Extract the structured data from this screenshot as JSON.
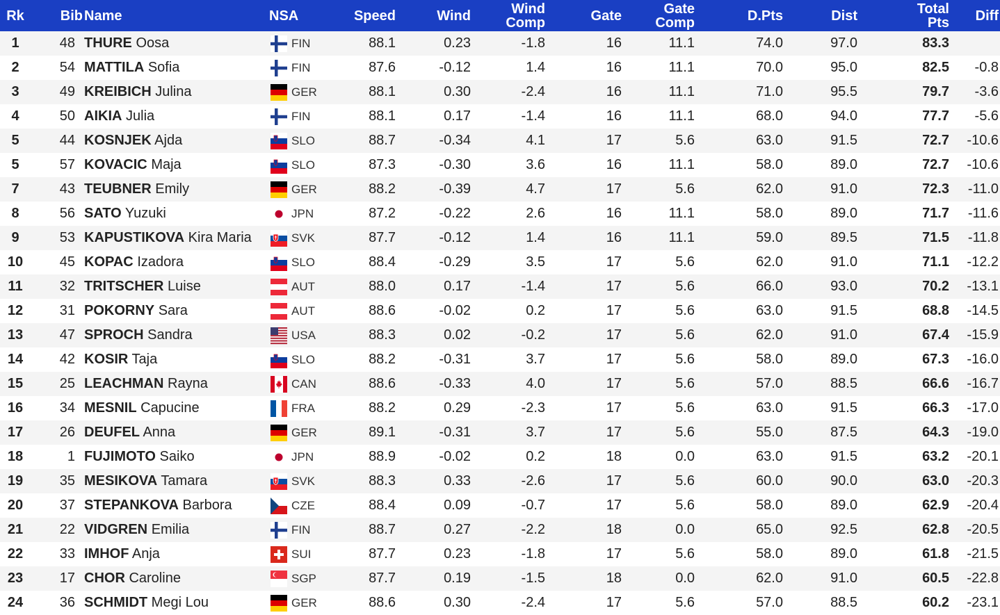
{
  "headers": {
    "rk": "Rk",
    "bib": "Bib",
    "name": "Name",
    "nsa": "NSA",
    "speed": "Speed",
    "wind": "Wind",
    "wind_comp": "Wind\nComp",
    "gate": "Gate",
    "gate_comp": "Gate\nComp",
    "dpts": "D.Pts",
    "dist": "Dist",
    "total_pts": "Total\nPts",
    "diff": "Diff"
  },
  "rows": [
    {
      "rk": "1",
      "bib": "48",
      "surname": "THURE",
      "given": "Oosa",
      "flag_icon": "flag-finland-icon",
      "nsa": "FIN",
      "speed": "88.1",
      "wind": "0.23",
      "wind_comp": "-1.8",
      "gate": "16",
      "gate_comp": "11.1",
      "dpts": "74.0",
      "dist": "97.0",
      "total": "83.3",
      "diff": ""
    },
    {
      "rk": "2",
      "bib": "54",
      "surname": "MATTILA",
      "given": "Sofia",
      "flag_icon": "flag-finland-icon",
      "nsa": "FIN",
      "speed": "87.6",
      "wind": "-0.12",
      "wind_comp": "1.4",
      "gate": "16",
      "gate_comp": "11.1",
      "dpts": "70.0",
      "dist": "95.0",
      "total": "82.5",
      "diff": "-0.8"
    },
    {
      "rk": "3",
      "bib": "49",
      "surname": "KREIBICH",
      "given": "Julina",
      "flag_icon": "flag-germany-icon",
      "nsa": "GER",
      "speed": "88.1",
      "wind": "0.30",
      "wind_comp": "-2.4",
      "gate": "16",
      "gate_comp": "11.1",
      "dpts": "71.0",
      "dist": "95.5",
      "total": "79.7",
      "diff": "-3.6"
    },
    {
      "rk": "4",
      "bib": "50",
      "surname": "AIKIA",
      "given": "Julia",
      "flag_icon": "flag-finland-icon",
      "nsa": "FIN",
      "speed": "88.1",
      "wind": "0.17",
      "wind_comp": "-1.4",
      "gate": "16",
      "gate_comp": "11.1",
      "dpts": "68.0",
      "dist": "94.0",
      "total": "77.7",
      "diff": "-5.6"
    },
    {
      "rk": "5",
      "bib": "44",
      "surname": "KOSNJEK",
      "given": "Ajda",
      "flag_icon": "flag-slovenia-icon",
      "nsa": "SLO",
      "speed": "88.7",
      "wind": "-0.34",
      "wind_comp": "4.1",
      "gate": "17",
      "gate_comp": "5.6",
      "dpts": "63.0",
      "dist": "91.5",
      "total": "72.7",
      "diff": "-10.6"
    },
    {
      "rk": "5",
      "bib": "57",
      "surname": "KOVACIC",
      "given": "Maja",
      "flag_icon": "flag-slovenia-icon",
      "nsa": "SLO",
      "speed": "87.3",
      "wind": "-0.30",
      "wind_comp": "3.6",
      "gate": "16",
      "gate_comp": "11.1",
      "dpts": "58.0",
      "dist": "89.0",
      "total": "72.7",
      "diff": "-10.6"
    },
    {
      "rk": "7",
      "bib": "43",
      "surname": "TEUBNER",
      "given": "Emily",
      "flag_icon": "flag-germany-icon",
      "nsa": "GER",
      "speed": "88.2",
      "wind": "-0.39",
      "wind_comp": "4.7",
      "gate": "17",
      "gate_comp": "5.6",
      "dpts": "62.0",
      "dist": "91.0",
      "total": "72.3",
      "diff": "-11.0"
    },
    {
      "rk": "8",
      "bib": "56",
      "surname": "SATO",
      "given": "Yuzuki",
      "flag_icon": "flag-japan-icon",
      "nsa": "JPN",
      "speed": "87.2",
      "wind": "-0.22",
      "wind_comp": "2.6",
      "gate": "16",
      "gate_comp": "11.1",
      "dpts": "58.0",
      "dist": "89.0",
      "total": "71.7",
      "diff": "-11.6"
    },
    {
      "rk": "9",
      "bib": "53",
      "surname": "KAPUSTIKOVA",
      "given": "Kira Maria",
      "flag_icon": "flag-slovakia-icon",
      "nsa": "SVK",
      "speed": "87.7",
      "wind": "-0.12",
      "wind_comp": "1.4",
      "gate": "16",
      "gate_comp": "11.1",
      "dpts": "59.0",
      "dist": "89.5",
      "total": "71.5",
      "diff": "-11.8"
    },
    {
      "rk": "10",
      "bib": "45",
      "surname": "KOPAC",
      "given": "Izadora",
      "flag_icon": "flag-slovenia-icon",
      "nsa": "SLO",
      "speed": "88.4",
      "wind": "-0.29",
      "wind_comp": "3.5",
      "gate": "17",
      "gate_comp": "5.6",
      "dpts": "62.0",
      "dist": "91.0",
      "total": "71.1",
      "diff": "-12.2"
    },
    {
      "rk": "11",
      "bib": "32",
      "surname": "TRITSCHER",
      "given": "Luise",
      "flag_icon": "flag-austria-icon",
      "nsa": "AUT",
      "speed": "88.0",
      "wind": "0.17",
      "wind_comp": "-1.4",
      "gate": "17",
      "gate_comp": "5.6",
      "dpts": "66.0",
      "dist": "93.0",
      "total": "70.2",
      "diff": "-13.1"
    },
    {
      "rk": "12",
      "bib": "31",
      "surname": "POKORNY",
      "given": "Sara",
      "flag_icon": "flag-austria-icon",
      "nsa": "AUT",
      "speed": "88.6",
      "wind": "-0.02",
      "wind_comp": "0.2",
      "gate": "17",
      "gate_comp": "5.6",
      "dpts": "63.0",
      "dist": "91.5",
      "total": "68.8",
      "diff": "-14.5"
    },
    {
      "rk": "13",
      "bib": "47",
      "surname": "SPROCH",
      "given": "Sandra",
      "flag_icon": "flag-usa-icon",
      "nsa": "USA",
      "speed": "88.3",
      "wind": "0.02",
      "wind_comp": "-0.2",
      "gate": "17",
      "gate_comp": "5.6",
      "dpts": "62.0",
      "dist": "91.0",
      "total": "67.4",
      "diff": "-15.9"
    },
    {
      "rk": "14",
      "bib": "42",
      "surname": "KOSIR",
      "given": "Taja",
      "flag_icon": "flag-slovenia-icon",
      "nsa": "SLO",
      "speed": "88.2",
      "wind": "-0.31",
      "wind_comp": "3.7",
      "gate": "17",
      "gate_comp": "5.6",
      "dpts": "58.0",
      "dist": "89.0",
      "total": "67.3",
      "diff": "-16.0"
    },
    {
      "rk": "15",
      "bib": "25",
      "surname": "LEACHMAN",
      "given": "Rayna",
      "flag_icon": "flag-canada-icon",
      "nsa": "CAN",
      "speed": "88.6",
      "wind": "-0.33",
      "wind_comp": "4.0",
      "gate": "17",
      "gate_comp": "5.6",
      "dpts": "57.0",
      "dist": "88.5",
      "total": "66.6",
      "diff": "-16.7"
    },
    {
      "rk": "16",
      "bib": "34",
      "surname": "MESNIL",
      "given": "Capucine",
      "flag_icon": "flag-france-icon",
      "nsa": "FRA",
      "speed": "88.2",
      "wind": "0.29",
      "wind_comp": "-2.3",
      "gate": "17",
      "gate_comp": "5.6",
      "dpts": "63.0",
      "dist": "91.5",
      "total": "66.3",
      "diff": "-17.0"
    },
    {
      "rk": "17",
      "bib": "26",
      "surname": "DEUFEL",
      "given": "Anna",
      "flag_icon": "flag-germany-icon",
      "nsa": "GER",
      "speed": "89.1",
      "wind": "-0.31",
      "wind_comp": "3.7",
      "gate": "17",
      "gate_comp": "5.6",
      "dpts": "55.0",
      "dist": "87.5",
      "total": "64.3",
      "diff": "-19.0"
    },
    {
      "rk": "18",
      "bib": "1",
      "surname": "FUJIMOTO",
      "given": "Saiko",
      "flag_icon": "flag-japan-icon",
      "nsa": "JPN",
      "speed": "88.9",
      "wind": "-0.02",
      "wind_comp": "0.2",
      "gate": "18",
      "gate_comp": "0.0",
      "dpts": "63.0",
      "dist": "91.5",
      "total": "63.2",
      "diff": "-20.1"
    },
    {
      "rk": "19",
      "bib": "35",
      "surname": "MESIKOVA",
      "given": "Tamara",
      "flag_icon": "flag-slovakia-icon",
      "nsa": "SVK",
      "speed": "88.3",
      "wind": "0.33",
      "wind_comp": "-2.6",
      "gate": "17",
      "gate_comp": "5.6",
      "dpts": "60.0",
      "dist": "90.0",
      "total": "63.0",
      "diff": "-20.3"
    },
    {
      "rk": "20",
      "bib": "37",
      "surname": "STEPANKOVA",
      "given": "Barbora",
      "flag_icon": "flag-czechia-icon",
      "nsa": "CZE",
      "speed": "88.4",
      "wind": "0.09",
      "wind_comp": "-0.7",
      "gate": "17",
      "gate_comp": "5.6",
      "dpts": "58.0",
      "dist": "89.0",
      "total": "62.9",
      "diff": "-20.4"
    },
    {
      "rk": "21",
      "bib": "22",
      "surname": "VIDGREN",
      "given": "Emilia",
      "flag_icon": "flag-finland-icon",
      "nsa": "FIN",
      "speed": "88.7",
      "wind": "0.27",
      "wind_comp": "-2.2",
      "gate": "18",
      "gate_comp": "0.0",
      "dpts": "65.0",
      "dist": "92.5",
      "total": "62.8",
      "diff": "-20.5"
    },
    {
      "rk": "22",
      "bib": "33",
      "surname": "IMHOF",
      "given": "Anja",
      "flag_icon": "flag-switzerland-icon",
      "nsa": "SUI",
      "speed": "87.7",
      "wind": "0.23",
      "wind_comp": "-1.8",
      "gate": "17",
      "gate_comp": "5.6",
      "dpts": "58.0",
      "dist": "89.0",
      "total": "61.8",
      "diff": "-21.5"
    },
    {
      "rk": "23",
      "bib": "17",
      "surname": "CHOR",
      "given": "Caroline",
      "flag_icon": "flag-singapore-icon",
      "nsa": "SGP",
      "speed": "87.7",
      "wind": "0.19",
      "wind_comp": "-1.5",
      "gate": "18",
      "gate_comp": "0.0",
      "dpts": "62.0",
      "dist": "91.0",
      "total": "60.5",
      "diff": "-22.8"
    },
    {
      "rk": "24",
      "bib": "36",
      "surname": "SCHMIDT",
      "given": "Megi Lou",
      "flag_icon": "flag-germany-icon",
      "nsa": "GER",
      "speed": "88.6",
      "wind": "0.30",
      "wind_comp": "-2.4",
      "gate": "17",
      "gate_comp": "5.6",
      "dpts": "57.0",
      "dist": "88.5",
      "total": "60.2",
      "diff": "-23.1"
    }
  ],
  "colors": {
    "header_bg": "#1a3fc3",
    "header_text": "#ffffff",
    "row_odd": "#f4f4f4",
    "row_even": "#ffffff"
  }
}
